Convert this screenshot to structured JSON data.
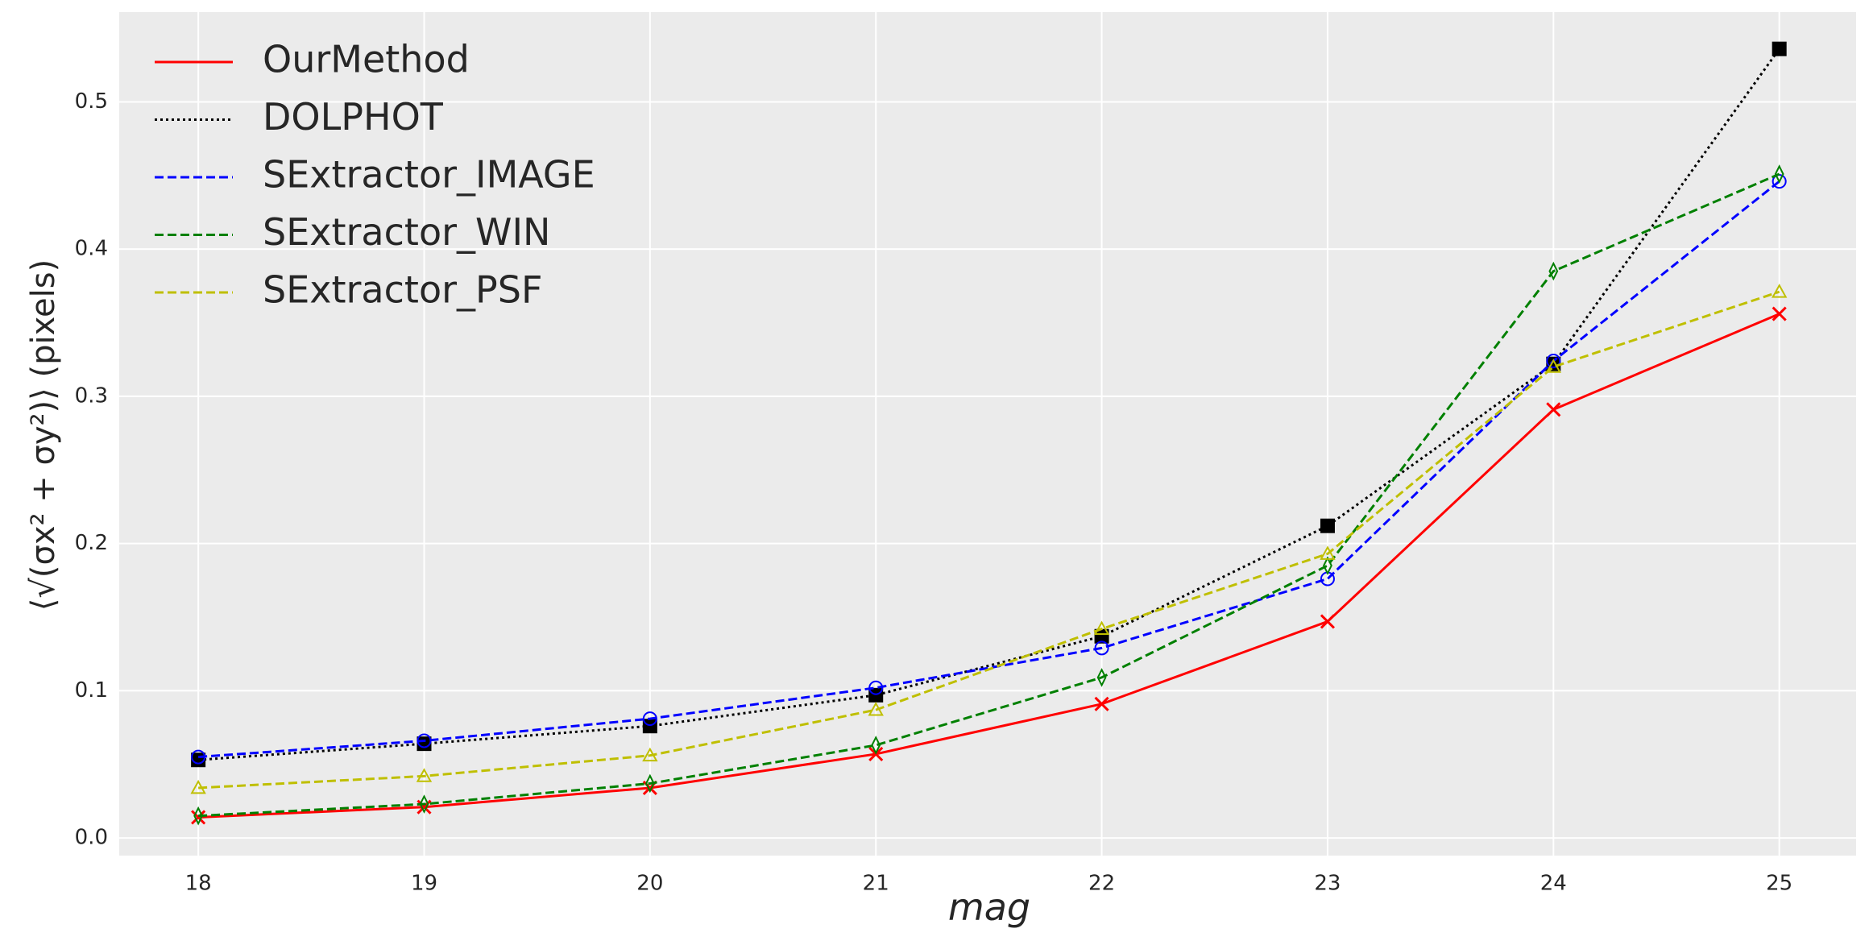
{
  "chart_data": {
    "type": "line",
    "xlabel": "mag",
    "ylabel": "⟨√(σx² + σy²)⟩ (pixels)",
    "x": [
      18,
      19,
      20,
      21,
      22,
      23,
      24,
      25
    ],
    "xlim": [
      17.65,
      25.34
    ],
    "xticks": [
      18,
      19,
      20,
      21,
      22,
      23,
      24,
      25
    ],
    "ylim": [
      -0.012,
      0.561
    ],
    "yticks": [
      {
        "value": 0,
        "label": "0.0"
      },
      0.1,
      0.2,
      0.3,
      0.4,
      0.5
    ],
    "grid": true,
    "legend": "upper left",
    "series": [
      {
        "name": "OurMethod",
        "color": "#ff0000",
        "linestyle": "solid",
        "marker": "x",
        "values": [
          0.014,
          0.021,
          0.034,
          0.057,
          0.091,
          0.147,
          0.291,
          0.356
        ]
      },
      {
        "name": "DOLPHOT",
        "color": "#000000",
        "linestyle": "dotted",
        "marker": "square",
        "values": [
          0.053,
          0.064,
          0.076,
          0.097,
          0.137,
          0.212,
          0.322,
          0.536
        ]
      },
      {
        "name": "SExtractor_IMAGE",
        "color": "#0000ff",
        "linestyle": "dashed",
        "marker": "circle",
        "values": [
          0.055,
          0.066,
          0.081,
          0.102,
          0.129,
          0.176,
          0.324,
          0.446
        ]
      },
      {
        "name": "SExtractor_WIN",
        "color": "#008000",
        "linestyle": "dashed",
        "marker": "diamond",
        "values": [
          0.015,
          0.023,
          0.037,
          0.063,
          0.109,
          0.185,
          0.385,
          0.451
        ]
      },
      {
        "name": "SExtractor_PSF",
        "color": "#bfbf00",
        "linestyle": "dashed",
        "marker": "triangle",
        "values": [
          0.034,
          0.042,
          0.056,
          0.087,
          0.142,
          0.193,
          0.32,
          0.371
        ]
      }
    ]
  }
}
